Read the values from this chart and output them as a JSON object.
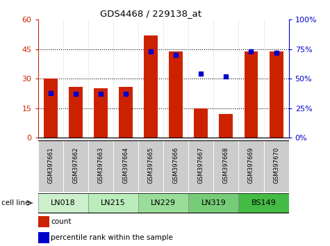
{
  "title": "GDS4468 / 229138_at",
  "samples": [
    "GSM397661",
    "GSM397662",
    "GSM397663",
    "GSM397664",
    "GSM397665",
    "GSM397666",
    "GSM397667",
    "GSM397668",
    "GSM397669",
    "GSM397670"
  ],
  "counts": [
    30,
    26,
    25,
    26,
    52,
    44,
    15,
    12,
    44,
    44
  ],
  "percentile_ranks": [
    38,
    37,
    37,
    37,
    73,
    70,
    54,
    52,
    73,
    72
  ],
  "cell_lines": [
    {
      "label": "LN018",
      "start": 0,
      "end": 2,
      "color": "#ccf0cc"
    },
    {
      "label": "LN215",
      "start": 2,
      "end": 4,
      "color": "#bbecbb"
    },
    {
      "label": "LN229",
      "start": 4,
      "end": 6,
      "color": "#99dd99"
    },
    {
      "label": "LN319",
      "start": 6,
      "end": 8,
      "color": "#77cc77"
    },
    {
      "label": "BS149",
      "start": 8,
      "end": 10,
      "color": "#44bb44"
    }
  ],
  "ylim_left": [
    0,
    60
  ],
  "ylim_right": [
    0,
    100
  ],
  "yticks_left": [
    0,
    15,
    30,
    45,
    60
  ],
  "yticks_right": [
    0,
    25,
    50,
    75,
    100
  ],
  "bar_color": "#cc2200",
  "dot_color": "#0000cc",
  "bar_width": 0.55,
  "sample_bg_color": "#cccccc",
  "cell_line_label": "cell line"
}
